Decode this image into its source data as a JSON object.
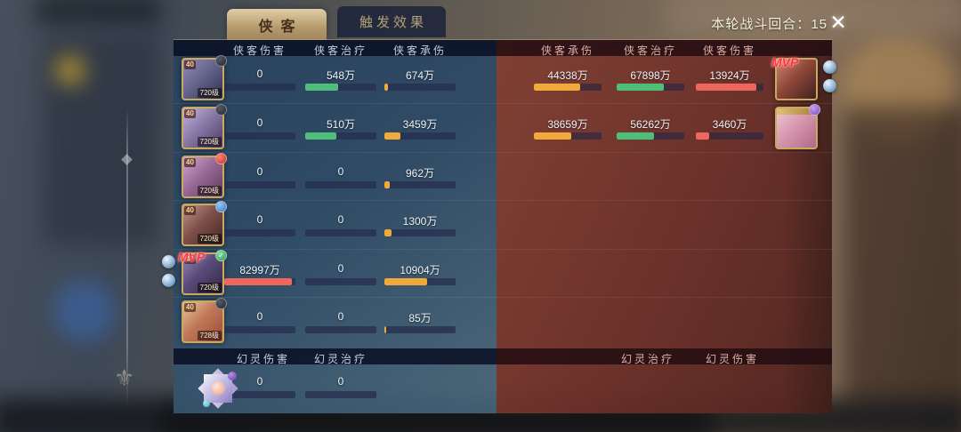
{
  "app": {
    "round_label": "本轮战斗回合：",
    "round_value": "15",
    "close_icon": "✕",
    "lotus_icon": "⚜"
  },
  "tabs": [
    {
      "label": "侠客",
      "active": true
    },
    {
      "label": "触发效果",
      "active": false
    }
  ],
  "left": {
    "columns": [
      "侠客伤害",
      "侠客治疗",
      "侠客承伤"
    ],
    "pet_columns": [
      "幻灵伤害",
      "幻灵治疗"
    ],
    "rows": [
      {
        "avatar": "l1",
        "rank": "40",
        "level": "720级",
        "badge": "dark",
        "stats": [
          {
            "v": "0",
            "f": 0,
            "c": "none"
          },
          {
            "v": "548万",
            "f": 46,
            "c": "green"
          },
          {
            "v": "674万",
            "f": 5,
            "c": "orange"
          }
        ]
      },
      {
        "avatar": "l2",
        "rank": "40",
        "level": "720级",
        "badge": "dark",
        "stats": [
          {
            "v": "0",
            "f": 0,
            "c": "none"
          },
          {
            "v": "510万",
            "f": 44,
            "c": "green"
          },
          {
            "v": "3459万",
            "f": 22,
            "c": "orange"
          }
        ]
      },
      {
        "avatar": "l3",
        "rank": "40",
        "level": "720级",
        "badge": "red",
        "stats": [
          {
            "v": "0",
            "f": 0,
            "c": "none"
          },
          {
            "v": "0",
            "f": 0,
            "c": "none"
          },
          {
            "v": "962万",
            "f": 8,
            "c": "orange"
          }
        ]
      },
      {
        "avatar": "l4",
        "rank": "40",
        "level": "720级",
        "badge": "blue",
        "stats": [
          {
            "v": "0",
            "f": 0,
            "c": "none"
          },
          {
            "v": "0",
            "f": 0,
            "c": "none"
          },
          {
            "v": "1300万",
            "f": 10,
            "c": "orange"
          }
        ]
      },
      {
        "avatar": "l5",
        "rank": "40",
        "level": "720级",
        "badge": "green",
        "badge_glyph": "✓",
        "mvp": "MVP",
        "side_orbs": "left",
        "stats": [
          {
            "v": "82997万",
            "f": 95,
            "c": "red"
          },
          {
            "v": "0",
            "f": 0,
            "c": "none"
          },
          {
            "v": "10904万",
            "f": 60,
            "c": "orange"
          }
        ]
      },
      {
        "avatar": "l6",
        "rank": "40",
        "level": "728级",
        "badge": "dark",
        "stats": [
          {
            "v": "0",
            "f": 0,
            "c": "none"
          },
          {
            "v": "0",
            "f": 0,
            "c": "none"
          },
          {
            "v": "85万",
            "f": 2,
            "c": "orange"
          }
        ]
      }
    ],
    "pet_row": {
      "stats": [
        {
          "v": "0",
          "f": 0,
          "c": "none"
        },
        {
          "v": "0",
          "f": 0,
          "c": "none"
        }
      ]
    }
  },
  "right": {
    "columns": [
      "侠客承伤",
      "侠客治疗",
      "侠客伤害"
    ],
    "pet_columns": [
      "幻灵治疗",
      "幻灵伤害"
    ],
    "rows": [
      {
        "avatar": "r1",
        "mvp": "MVP",
        "side_orbs": "right",
        "stats": [
          {
            "v": "44338万",
            "f": 68,
            "c": "orange"
          },
          {
            "v": "67898万",
            "f": 70,
            "c": "green"
          },
          {
            "v": "13924万",
            "f": 90,
            "c": "red"
          }
        ]
      },
      {
        "avatar": "r2",
        "badge": "purple",
        "gold_strip": true,
        "stats": [
          {
            "v": "38659万",
            "f": 55,
            "c": "orange"
          },
          {
            "v": "56262万",
            "f": 55,
            "c": "green"
          },
          {
            "v": "3460万",
            "f": 20,
            "c": "red"
          }
        ]
      },
      {},
      {},
      {},
      {}
    ]
  },
  "colors": {
    "green": "#4fbe7a",
    "orange": "#f2a93b",
    "red": "#ee675c",
    "tab_gold": "#c9ae80",
    "panel_blue": "#2d4a66",
    "panel_red": "#6c3029"
  }
}
